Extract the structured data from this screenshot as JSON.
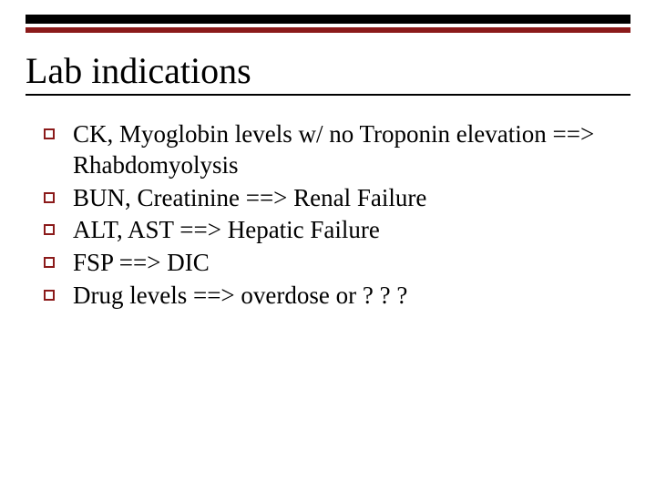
{
  "slide": {
    "title": "Lab indications",
    "accent_color": "#8b1a1a",
    "bullet_border_color": "#8b1a1a",
    "background_color": "#ffffff",
    "title_fontsize": 40,
    "body_fontsize": 27,
    "items": [
      "CK, Myoglobin levels w/ no Troponin elevation ==> Rhabdomyolysis",
      "BUN, Creatinine ==> Renal Failure",
      "ALT, AST ==> Hepatic Failure",
      "FSP ==> DIC",
      "Drug levels ==> overdose or ? ? ?"
    ]
  }
}
